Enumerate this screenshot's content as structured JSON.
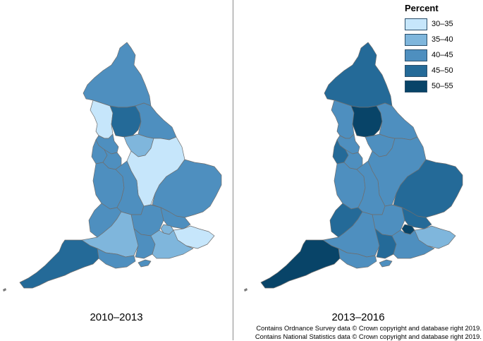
{
  "panels": [
    {
      "label": "2010–2013",
      "regions": [
        {
          "name": "north-east",
          "band": "40–45"
        },
        {
          "name": "cumbria-coast",
          "band": "30–35"
        },
        {
          "name": "dales",
          "band": "45–50"
        },
        {
          "name": "lancashire",
          "band": "40–45"
        },
        {
          "name": "leeds",
          "band": "35–40"
        },
        {
          "name": "east-yorkshire",
          "band": "40–45"
        },
        {
          "name": "merseyside",
          "band": "40–45"
        },
        {
          "name": "greater-manchester",
          "band": "40–45"
        },
        {
          "name": "midlands-east",
          "band": "30–35"
        },
        {
          "name": "cheshire-shropshire",
          "band": "40–45"
        },
        {
          "name": "west-midlands",
          "band": "40–45"
        },
        {
          "name": "east-anglia",
          "band": "40–45"
        },
        {
          "name": "wales-border",
          "band": "40–45"
        },
        {
          "name": "thames-valley",
          "band": "40–45"
        },
        {
          "name": "essex",
          "band": "40–45"
        },
        {
          "name": "london",
          "band": "35–40"
        },
        {
          "name": "kent",
          "band": "30–35"
        },
        {
          "name": "west-country",
          "band": "35–40"
        },
        {
          "name": "wessex",
          "band": "40–45"
        },
        {
          "name": "south-coast",
          "band": "35–40"
        },
        {
          "name": "dorset",
          "band": "40–45"
        },
        {
          "name": "devon-cornwall",
          "band": "45–50"
        },
        {
          "name": "isle-of-wight",
          "band": "40–45"
        }
      ]
    },
    {
      "label": "2013–2016",
      "regions": [
        {
          "name": "north-east",
          "band": "45–50"
        },
        {
          "name": "cumbria-coast",
          "band": "40–45"
        },
        {
          "name": "dales",
          "band": "50–55"
        },
        {
          "name": "lancashire",
          "band": "40–45"
        },
        {
          "name": "leeds",
          "band": "40–45"
        },
        {
          "name": "east-yorkshire",
          "band": "40–45"
        },
        {
          "name": "merseyside",
          "band": "45–50"
        },
        {
          "name": "greater-manchester",
          "band": "40–45"
        },
        {
          "name": "midlands-east",
          "band": "40–45"
        },
        {
          "name": "cheshire-shropshire",
          "band": "40–45"
        },
        {
          "name": "west-midlands",
          "band": "40–45"
        },
        {
          "name": "east-anglia",
          "band": "45–50"
        },
        {
          "name": "wales-border",
          "band": "45–50"
        },
        {
          "name": "thames-valley",
          "band": "40–45"
        },
        {
          "name": "essex",
          "band": "45–50"
        },
        {
          "name": "london",
          "band": "50–55"
        },
        {
          "name": "kent",
          "band": "35–40"
        },
        {
          "name": "west-country",
          "band": "40–45"
        },
        {
          "name": "wessex",
          "band": "45–50"
        },
        {
          "name": "south-coast",
          "band": "40–45"
        },
        {
          "name": "dorset",
          "band": "40–45"
        },
        {
          "name": "devon-cornwall",
          "band": "50–55"
        },
        {
          "name": "isle-of-wight",
          "band": "40–45"
        }
      ]
    }
  ],
  "legend": {
    "title": "Percent",
    "items": [
      {
        "label": "30–35",
        "color": "#c6e6fb"
      },
      {
        "label": "35–40",
        "color": "#7fb6dc"
      },
      {
        "label": "40–45",
        "color": "#4e8fbf"
      },
      {
        "label": "45–50",
        "color": "#246a98"
      },
      {
        "label": "50–55",
        "color": "#084468"
      }
    ]
  },
  "credits": {
    "line1": "Contains Ordnance Survey data © Crown copyright and database right 2019.",
    "line2": "Contains National Statistics data © Crown copyright and database right 2019."
  }
}
